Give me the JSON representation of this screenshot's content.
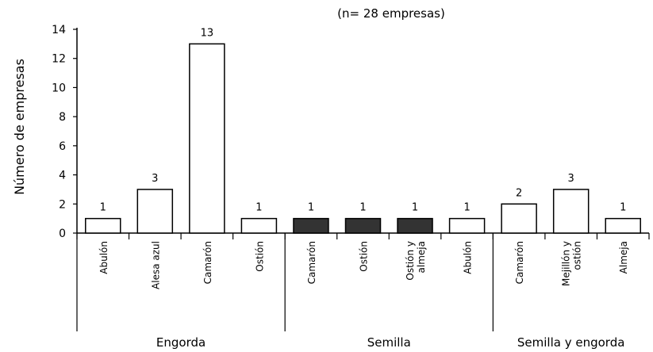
{
  "chart_data": {
    "type": "bar",
    "title": "(n= 28 empresas)",
    "ylabel": "Número de empresas",
    "xlabel": "",
    "ylim": [
      0,
      14
    ],
    "yticks": [
      "0",
      "2",
      "4",
      "6",
      "8",
      "10",
      "12",
      "14"
    ],
    "grid": false,
    "groups": [
      {
        "label": "Engorda",
        "categories": [
          0,
          1,
          2,
          3
        ]
      },
      {
        "label": "Semilla",
        "categories": [
          4,
          5,
          6,
          7
        ]
      },
      {
        "label": "Semilla y engorda",
        "categories": [
          8,
          9,
          10
        ]
      }
    ],
    "categories": [
      {
        "label": "Abulón",
        "value": 1,
        "value_label": "1",
        "fill": "white"
      },
      {
        "label": "Alesa azul",
        "value": 3,
        "value_label": "3",
        "fill": "white"
      },
      {
        "label": "Camarón",
        "value": 13,
        "value_label": "13",
        "fill": "white"
      },
      {
        "label": "Ostión",
        "value": 1,
        "value_label": "1",
        "fill": "white"
      },
      {
        "label": "Camarón",
        "value": 1,
        "value_label": "1",
        "fill": "dark"
      },
      {
        "label": "Ostión",
        "value": 1,
        "value_label": "1",
        "fill": "dark"
      },
      {
        "label": "Ostión y\nalmeja",
        "value": 1,
        "value_label": "1",
        "fill": "dark"
      },
      {
        "label": "Abulón",
        "value": 1,
        "value_label": "1",
        "fill": "white"
      },
      {
        "label": "Camarón",
        "value": 2,
        "value_label": "2",
        "fill": "white"
      },
      {
        "label": "Mejillón y\nostión",
        "value": 3,
        "value_label": "3",
        "fill": "white"
      },
      {
        "label": "Almeja",
        "value": 1,
        "value_label": "1",
        "fill": "white"
      }
    ],
    "colors": {
      "white": "#ffffff",
      "dark": "#333333",
      "stroke": "#000000"
    }
  }
}
